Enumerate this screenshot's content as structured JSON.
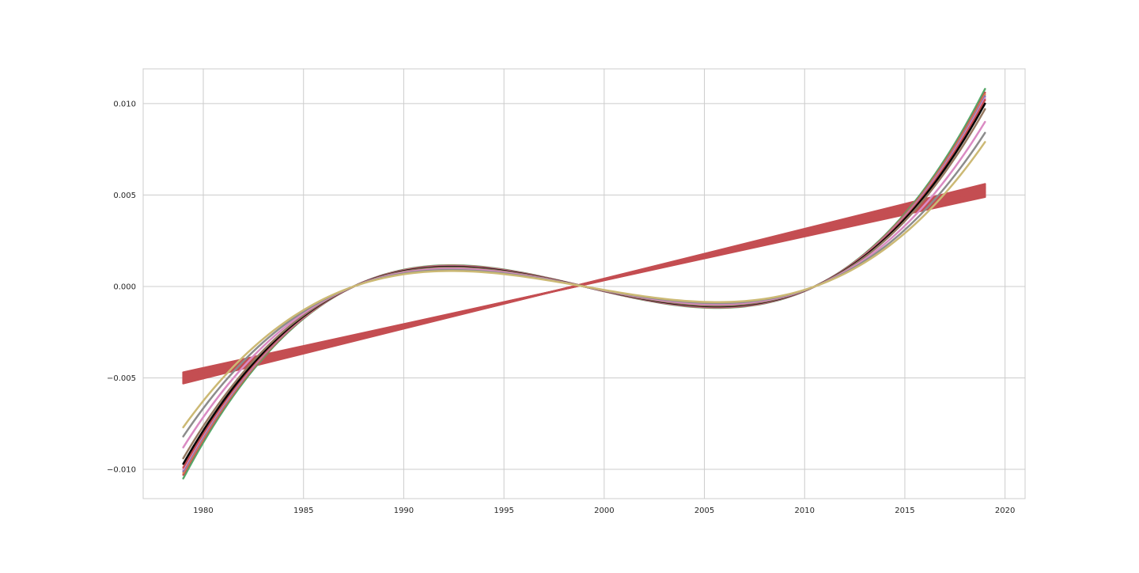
{
  "chart_data": {
    "type": "line",
    "title": "",
    "xlabel": "",
    "ylabel": "",
    "xlim": [
      1977,
      2021
    ],
    "ylim": [
      -0.0116,
      0.0119
    ],
    "xticks": [
      1980,
      1985,
      1990,
      1995,
      2000,
      2005,
      2010,
      2015,
      2020
    ],
    "yticks": [
      -0.01,
      -0.005,
      0.0,
      0.005,
      0.01
    ],
    "xtick_labels": [
      "1980",
      "1985",
      "1990",
      "1995",
      "2000",
      "2005",
      "2010",
      "2015",
      "2020"
    ],
    "ytick_labels": [
      "−0.010",
      "−0.005",
      "0.000",
      "0.005",
      "0.010"
    ],
    "grid": true,
    "legend": "none",
    "curve_model": "cubic",
    "x_start": 1979,
    "x_end": 2019,
    "x_center": 1999,
    "x_roots": [
      1987.5,
      2010.5
    ],
    "line_band": {
      "color": "#c44e52",
      "y_start_range": [
        -0.0047,
        -0.0053
      ],
      "y_end_range": [
        0.0049,
        0.0056
      ],
      "count": 14
    },
    "series": [
      {
        "color": "#55a868",
        "y_start": -0.0105,
        "y_end": 0.0108
      },
      {
        "color": "#c44e52",
        "y_start": -0.0103,
        "y_end": 0.0106
      },
      {
        "color": "#dd8452",
        "y_start": -0.0102,
        "y_end": 0.0105
      },
      {
        "color": "#8172b3",
        "y_start": -0.0101,
        "y_end": 0.0104
      },
      {
        "color": "#da8bc3",
        "y_start": -0.01,
        "y_end": 0.0103
      },
      {
        "color": "#c44e52",
        "y_start": -0.0099,
        "y_end": 0.0102
      },
      {
        "color": "#000000",
        "y_start": -0.0097,
        "y_end": 0.01
      },
      {
        "color": "#937860",
        "y_start": -0.0094,
        "y_end": 0.0097
      },
      {
        "color": "#da8bc3",
        "y_start": -0.0088,
        "y_end": 0.009
      },
      {
        "color": "#8c8c8c",
        "y_start": -0.0082,
        "y_end": 0.0084
      },
      {
        "color": "#ccb974",
        "y_start": -0.0077,
        "y_end": 0.0079
      }
    ]
  }
}
